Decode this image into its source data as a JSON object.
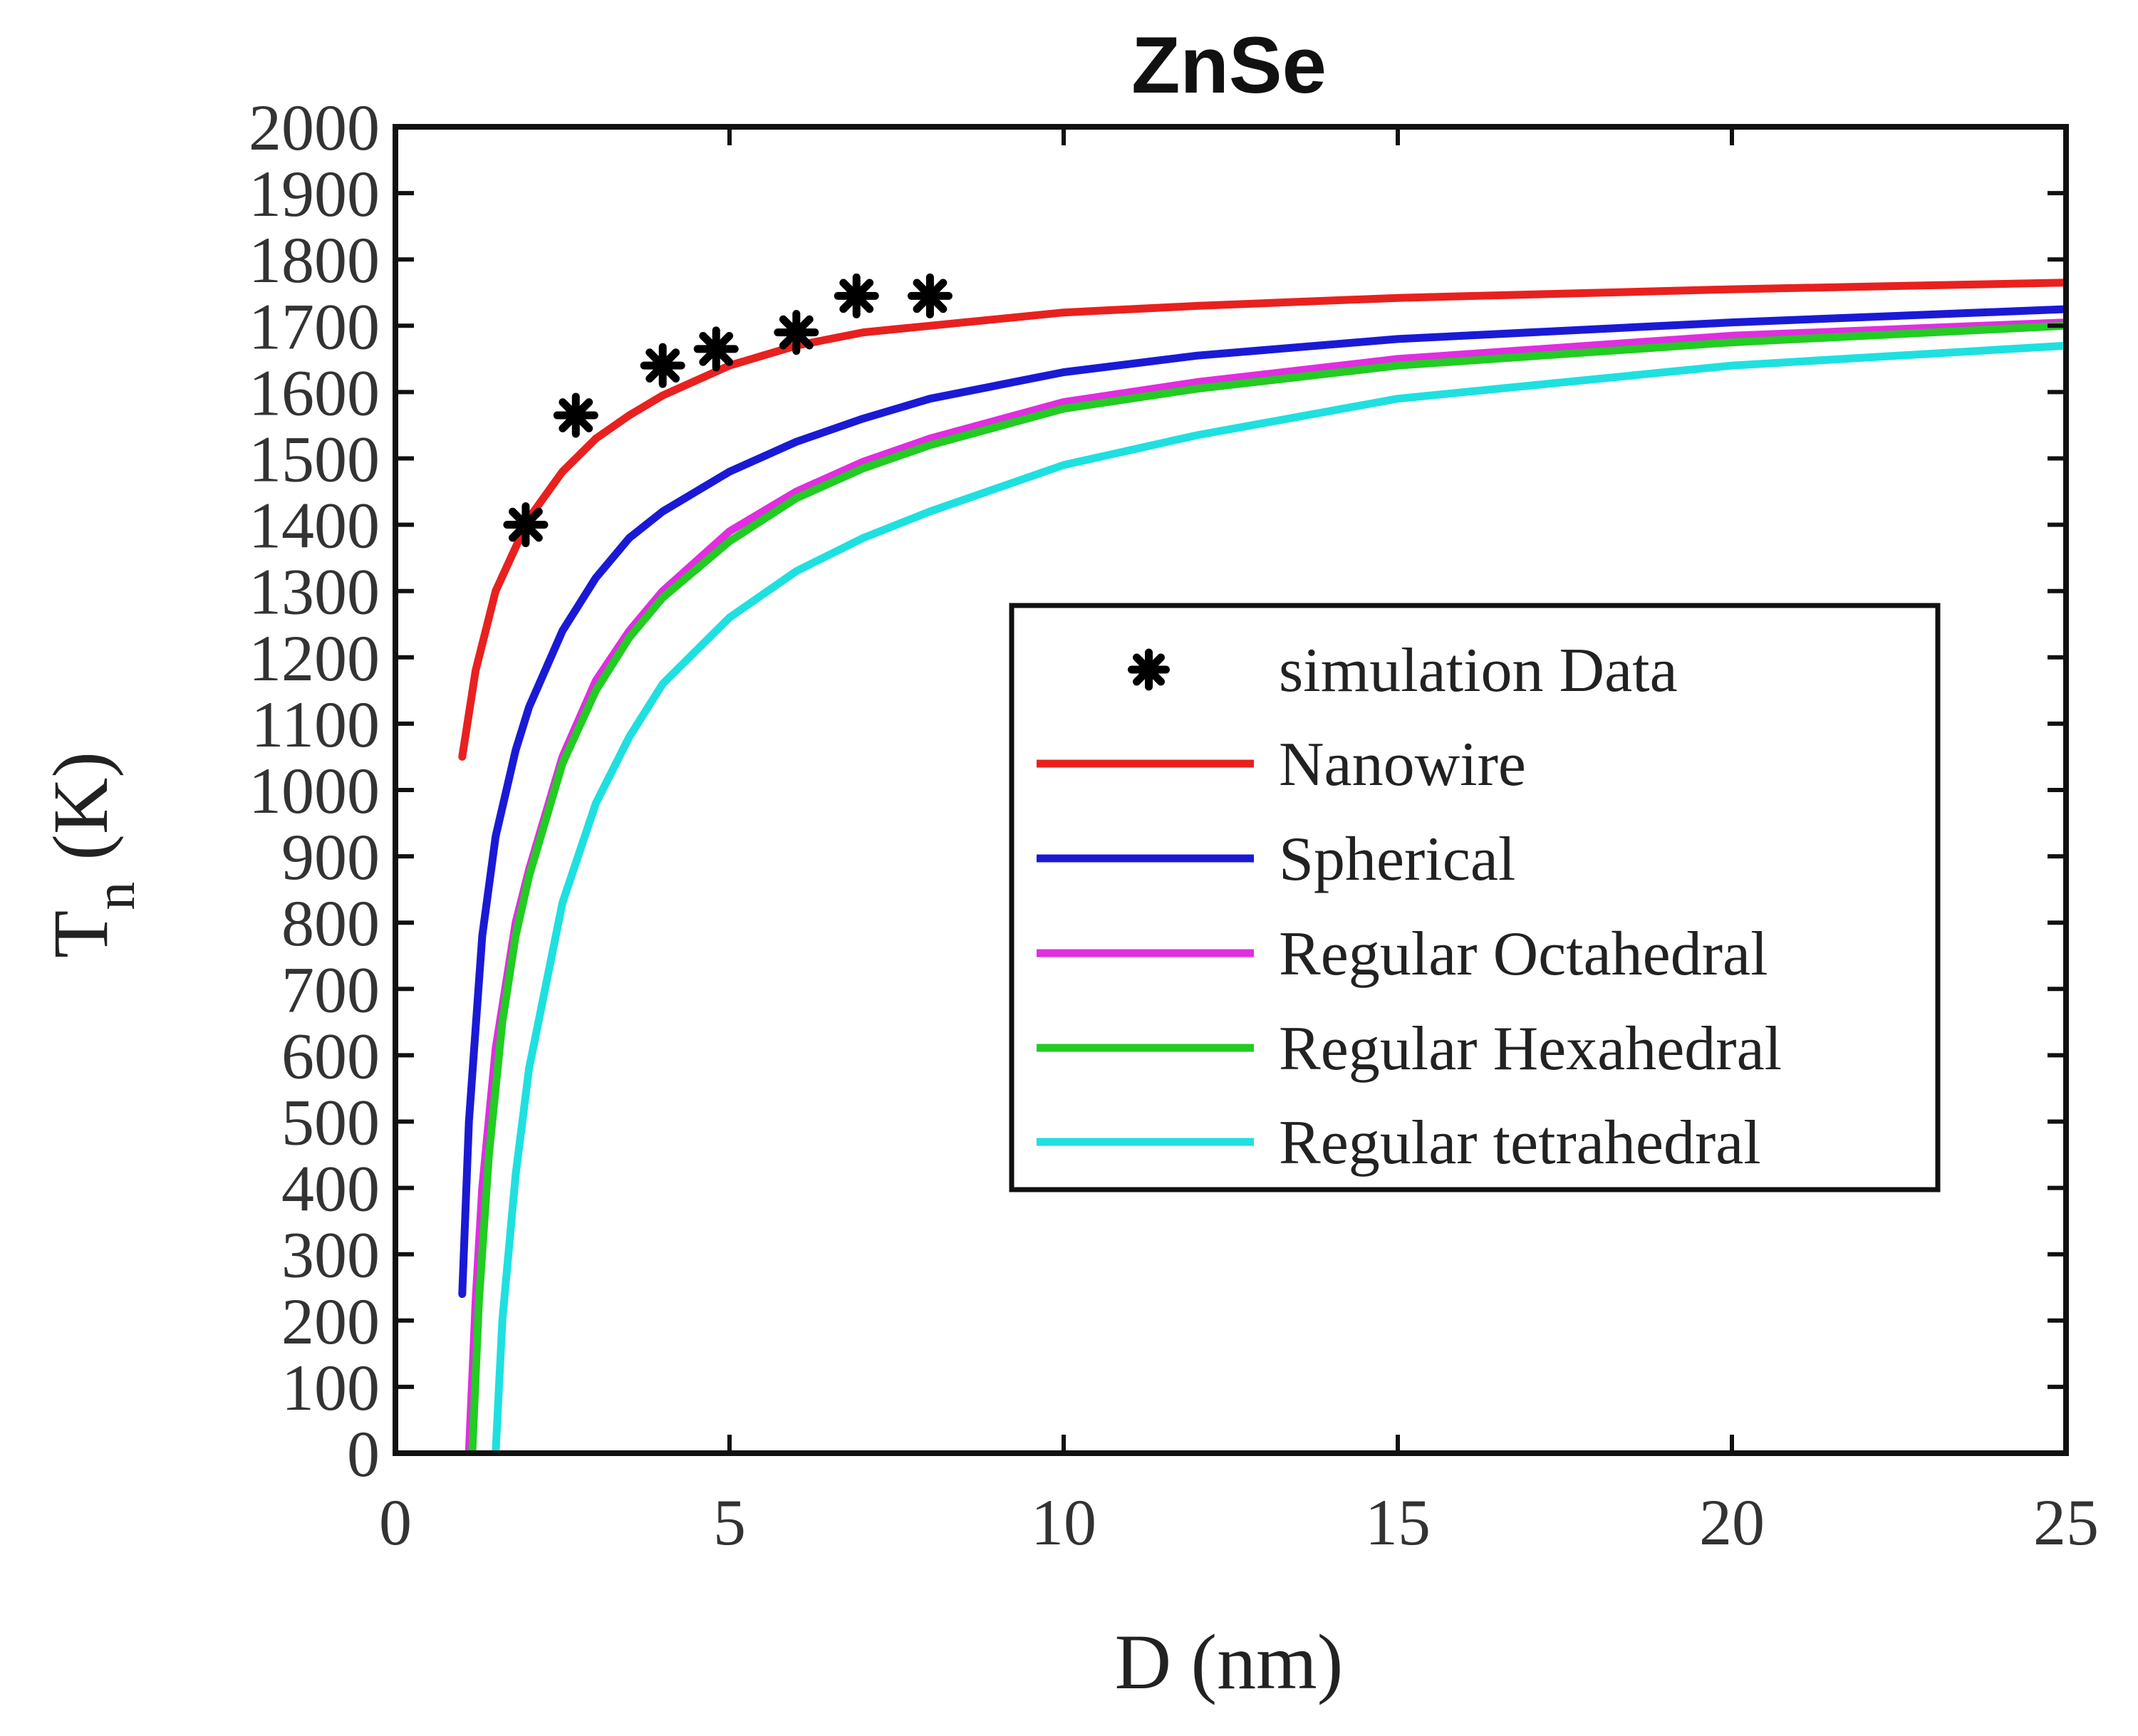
{
  "chart_data": {
    "type": "line",
    "title": "ZnSe",
    "xlabel": "D (nm)",
    "ylabel_main": "T",
    "ylabel_sub": "n",
    "ylabel_unit": "(K)",
    "xlim": [
      0,
      25
    ],
    "ylim": [
      0,
      2000
    ],
    "xticks": [
      0,
      5,
      10,
      15,
      20,
      25
    ],
    "yticks": [
      0,
      100,
      200,
      300,
      400,
      500,
      600,
      700,
      800,
      900,
      1000,
      1100,
      1200,
      1300,
      1400,
      1500,
      1600,
      1700,
      1800,
      1900,
      2000
    ],
    "grid": false,
    "legend_position": "center-right",
    "scatter": {
      "name": "simulation Data",
      "marker": "asterisk",
      "color": "#000000",
      "points": [
        {
          "x": 1.95,
          "y": 1400
        },
        {
          "x": 2.7,
          "y": 1565
        },
        {
          "x": 4.0,
          "y": 1640
        },
        {
          "x": 4.8,
          "y": 1665
        },
        {
          "x": 6.0,
          "y": 1690
        },
        {
          "x": 6.9,
          "y": 1745
        },
        {
          "x": 8.0,
          "y": 1745
        }
      ]
    },
    "series": [
      {
        "name": "Nanowire",
        "color": "#e8211f",
        "x": [
          1.0,
          1.2,
          1.5,
          2.0,
          2.5,
          3.0,
          3.5,
          4.0,
          5.0,
          6.0,
          7.0,
          8.0,
          10.0,
          12.0,
          15.0,
          20.0,
          25.0
        ],
        "y": [
          1050,
          1180,
          1300,
          1410,
          1480,
          1530,
          1565,
          1595,
          1640,
          1670,
          1690,
          1700,
          1720,
          1730,
          1742,
          1755,
          1765
        ]
      },
      {
        "name": "Spherical",
        "color": "#1a1ad6",
        "x": [
          1.0,
          1.1,
          1.3,
          1.5,
          1.8,
          2.0,
          2.5,
          3.0,
          3.5,
          4.0,
          5.0,
          6.0,
          7.0,
          8.0,
          10.0,
          12.0,
          15.0,
          20.0,
          25.0
        ],
        "y": [
          240,
          500,
          780,
          930,
          1060,
          1125,
          1240,
          1320,
          1380,
          1420,
          1480,
          1525,
          1560,
          1590,
          1630,
          1655,
          1680,
          1705,
          1725
        ]
      },
      {
        "name": "Regular Octahedral",
        "color": "#e02ee0",
        "x": [
          1.1,
          1.2,
          1.3,
          1.5,
          1.8,
          2.0,
          2.5,
          3.0,
          3.5,
          4.0,
          5.0,
          6.0,
          7.0,
          8.0,
          10.0,
          12.0,
          15.0,
          20.0,
          25.0
        ],
        "y": [
          0,
          230,
          400,
          610,
          800,
          880,
          1050,
          1165,
          1240,
          1300,
          1390,
          1450,
          1495,
          1530,
          1585,
          1615,
          1650,
          1685,
          1705
        ]
      },
      {
        "name": "Regular Hexahedral",
        "color": "#22cc22",
        "x": [
          1.15,
          1.25,
          1.4,
          1.6,
          1.8,
          2.0,
          2.5,
          3.0,
          3.5,
          4.0,
          5.0,
          6.0,
          7.0,
          8.0,
          10.0,
          12.0,
          15.0,
          20.0,
          25.0
        ],
        "y": [
          0,
          230,
          450,
          650,
          780,
          870,
          1040,
          1150,
          1230,
          1290,
          1375,
          1440,
          1485,
          1520,
          1575,
          1605,
          1640,
          1675,
          1700
        ]
      },
      {
        "name": "Regular tetrahedral",
        "color": "#1fe0e0",
        "x": [
          1.5,
          1.6,
          1.8,
          2.0,
          2.5,
          3.0,
          3.5,
          4.0,
          5.0,
          6.0,
          7.0,
          8.0,
          10.0,
          12.0,
          15.0,
          20.0,
          25.0
        ],
        "y": [
          0,
          200,
          420,
          580,
          830,
          980,
          1080,
          1160,
          1260,
          1330,
          1380,
          1420,
          1490,
          1535,
          1590,
          1640,
          1670
        ]
      }
    ]
  }
}
